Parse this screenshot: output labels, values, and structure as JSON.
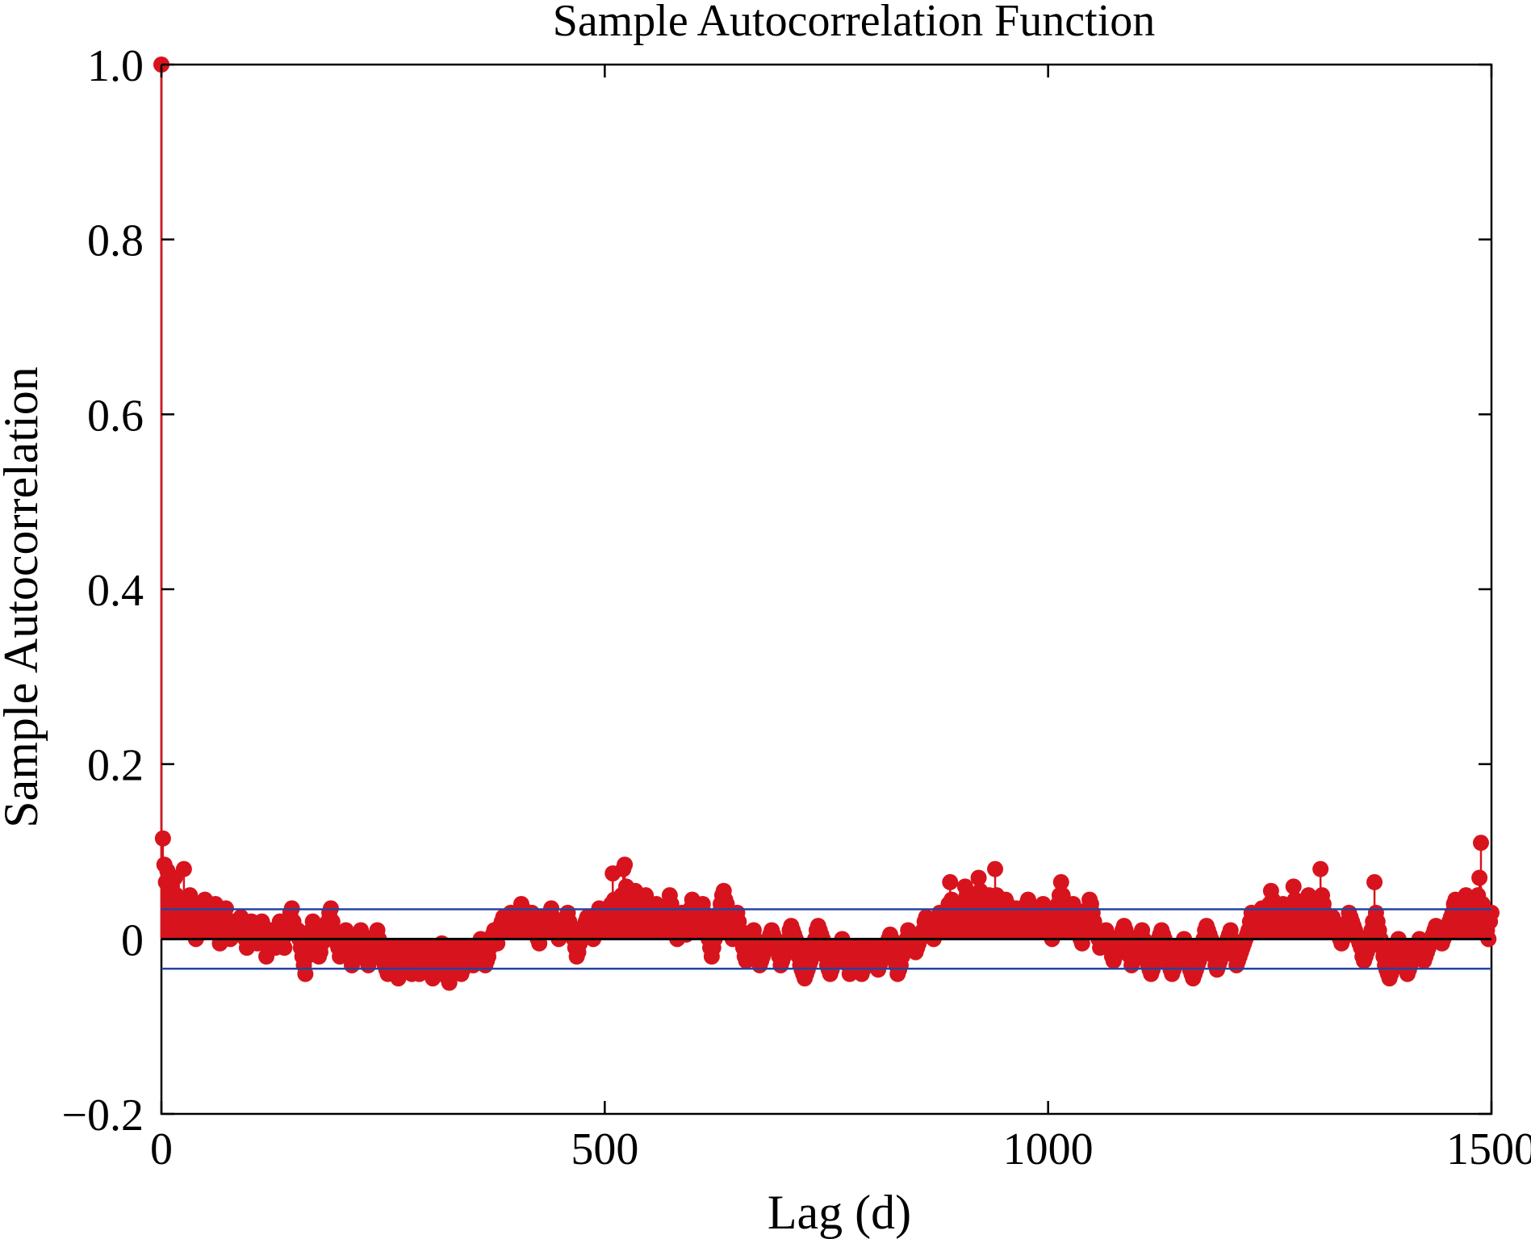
{
  "chart_data": {
    "type": "stem",
    "title": "Sample Autocorrelation Function",
    "xlabel": "Lag (d)",
    "ylabel": "Sample Autocorrelation",
    "xlim": [
      0,
      1500
    ],
    "ylim": [
      -0.2,
      1.0
    ],
    "xticks": [
      0,
      500,
      1000,
      1500
    ],
    "xtick_labels": [
      "0",
      "500",
      "1000",
      "1500"
    ],
    "yticks": [
      -0.2,
      0,
      0.2,
      0.4,
      0.6,
      0.8,
      1.0
    ],
    "ytick_labels": [
      "−0.2",
      "0",
      "0.2",
      "0.4",
      "0.6",
      "0.8",
      "1.0"
    ],
    "grid": false,
    "confidence_bounds": [
      0.034,
      -0.034
    ],
    "colors": {
      "stem": "#d7141e",
      "bounds": "#2244a0",
      "zero_line": "#000000",
      "axes": "#000000"
    },
    "series": [
      {
        "values": [
          1.0,
          0.115,
          0.085,
          0.065,
          0.078,
          0.055,
          0.045,
          0.06,
          0.04,
          0.07,
          0.05,
          0.03,
          0.02,
          0.045,
          0.035,
          0.08,
          0.04,
          0.02,
          0.01,
          0.05,
          0.03,
          0.025,
          0.015,
          0.0,
          0.02,
          0.03,
          0.04,
          0.025,
          0.035,
          0.045,
          0.02,
          0.01,
          0.03,
          0.035,
          0.02,
          0.025,
          0.04,
          0.015,
          0.005,
          -0.005,
          0.01,
          0.02,
          0.03,
          0.035,
          0.015,
          0.005,
          0.0,
          0.01,
          0.02,
          0.015,
          0.005,
          0.01,
          0.02,
          0.025,
          0.015,
          0.01,
          0.0,
          -0.01,
          0.005,
          0.015,
          0.02,
          0.01,
          0.0,
          0.005,
          -0.005,
          0.0,
          0.01,
          0.02,
          0.015,
          0.005,
          -0.02,
          -0.01,
          0.0,
          0.005,
          0.01,
          -0.005,
          -0.01,
          0.0,
          0.01,
          0.02,
          0.01,
          0.0,
          -0.01,
          0.005,
          0.015,
          0.02,
          0.03,
          0.035,
          0.02,
          0.01,
          0.005,
          0.01,
          0.0,
          -0.01,
          -0.02,
          -0.03,
          -0.04,
          -0.02,
          -0.01,
          0.0,
          0.01,
          0.02,
          0.01,
          0.0,
          -0.01,
          -0.02,
          -0.015,
          -0.005,
          0.0,
          0.005,
          0.01,
          0.02,
          0.03,
          0.035,
          0.02,
          0.01,
          0.0,
          -0.005,
          -0.01,
          -0.02,
          -0.01,
          0.0,
          0.005,
          0.01,
          0.0,
          -0.01,
          -0.02,
          -0.03,
          -0.02,
          -0.015,
          -0.01,
          0.0,
          0.005,
          0.01,
          -0.005,
          -0.01,
          -0.02,
          -0.025,
          -0.03,
          -0.025,
          -0.02,
          -0.01,
          0.0,
          0.005,
          0.01,
          0.0,
          -0.01,
          -0.015,
          -0.02,
          -0.03,
          -0.035,
          -0.04,
          -0.03,
          -0.02,
          -0.01,
          -0.02,
          -0.03,
          -0.04,
          -0.045,
          -0.035,
          -0.03,
          -0.02,
          -0.01,
          -0.015,
          -0.02,
          -0.025,
          -0.03,
          -0.04,
          -0.03,
          -0.02,
          -0.025,
          -0.035,
          -0.04,
          -0.03,
          -0.02,
          -0.015,
          -0.01,
          -0.02,
          -0.03,
          -0.035,
          -0.04,
          -0.045,
          -0.035,
          -0.03,
          -0.025,
          -0.02,
          -0.01,
          -0.005,
          -0.015,
          -0.025,
          -0.035,
          -0.045,
          -0.05,
          -0.04,
          -0.03,
          -0.02,
          -0.015,
          -0.01,
          -0.02,
          -0.03,
          -0.04,
          -0.035,
          -0.03,
          -0.025,
          -0.02,
          -0.015,
          -0.01,
          -0.02,
          -0.03,
          -0.025,
          -0.02,
          -0.01,
          -0.005,
          0.0,
          -0.01,
          -0.02,
          -0.03,
          -0.025,
          -0.02,
          -0.01,
          0.0,
          0.005,
          0.01,
          0.0,
          -0.005,
          0.005,
          0.015,
          0.02,
          0.025,
          0.02,
          0.01,
          0.015,
          0.02,
          0.03,
          0.025,
          0.02,
          0.015,
          0.01,
          0.02,
          0.03,
          0.04,
          0.035,
          0.025,
          0.02,
          0.015,
          0.01,
          0.02,
          0.03,
          0.025,
          0.015,
          0.005,
          0.0,
          -0.005,
          0.01,
          0.02,
          0.025,
          0.02,
          0.015,
          0.02,
          0.03,
          0.035,
          0.025,
          0.02,
          0.01,
          0.005,
          0.0,
          0.005,
          0.01,
          0.015,
          0.02,
          0.025,
          0.03,
          0.02,
          0.01,
          0.005,
          0.0,
          -0.01,
          -0.02,
          -0.015,
          -0.005,
          0.005,
          0.01,
          0.015,
          0.02,
          0.025,
          0.015,
          0.01,
          0.005,
          0.0,
          0.01,
          0.02,
          0.03,
          0.035,
          0.025,
          0.02,
          0.015,
          0.02,
          0.025,
          0.03,
          0.035,
          0.04,
          0.075,
          0.045,
          0.035,
          0.03,
          0.02,
          0.035,
          0.05,
          0.08,
          0.085,
          0.06,
          0.04,
          0.03,
          0.025,
          0.035,
          0.045,
          0.055,
          0.04,
          0.03,
          0.02,
          0.025,
          0.035,
          0.045,
          0.05,
          0.04,
          0.03,
          0.02,
          0.015,
          0.02,
          0.03,
          0.04,
          0.035,
          0.025,
          0.02,
          0.015,
          0.01,
          0.02,
          0.03,
          0.04,
          0.05,
          0.04,
          0.03,
          0.02,
          0.01,
          0.0,
          0.01,
          0.02,
          0.03,
          0.02,
          0.01,
          0.005,
          0.015,
          0.025,
          0.035,
          0.045,
          0.035,
          0.025,
          0.015,
          0.01,
          0.02,
          0.03,
          0.04,
          0.03,
          0.02,
          0.01,
          0.0,
          -0.01,
          -0.02,
          -0.01,
          0.0,
          0.01,
          0.02,
          0.03,
          0.04,
          0.05,
          0.055,
          0.045,
          0.04,
          0.03,
          0.02,
          0.01,
          0.0,
          0.01,
          0.02,
          0.03,
          0.02,
          0.01,
          0.0,
          -0.01,
          -0.02,
          -0.025,
          -0.015,
          -0.005,
          0.0,
          0.005,
          0.01,
          0.0,
          -0.01,
          -0.02,
          -0.03,
          -0.025,
          -0.02,
          -0.015,
          -0.01,
          -0.005,
          0.0,
          0.005,
          0.01,
          0.005,
          0.0,
          -0.005,
          -0.01,
          -0.02,
          -0.03,
          -0.025,
          -0.02,
          -0.01,
          -0.005,
          0.0,
          0.01,
          0.015,
          0.01,
          0.005,
          0.0,
          -0.01,
          -0.02,
          -0.03,
          -0.035,
          -0.04,
          -0.045,
          -0.04,
          -0.035,
          -0.03,
          -0.025,
          -0.02,
          -0.01,
          0.0,
          0.01,
          0.015,
          0.01,
          0.005,
          0.0,
          -0.01,
          -0.02,
          -0.03,
          -0.035,
          -0.04,
          -0.035,
          -0.03,
          -0.025,
          -0.02,
          -0.015,
          -0.01,
          -0.005,
          0.0,
          -0.005,
          -0.01,
          -0.02,
          -0.03,
          -0.04,
          -0.035,
          -0.03,
          -0.025,
          -0.02,
          -0.025,
          -0.03,
          -0.035,
          -0.04,
          -0.035,
          -0.03,
          -0.025,
          -0.02,
          -0.015,
          -0.01,
          -0.015,
          -0.02,
          -0.025,
          -0.03,
          -0.035,
          -0.03,
          -0.025,
          -0.02,
          -0.015,
          -0.01,
          -0.005,
          0.0,
          0.005,
          0.0,
          -0.01,
          -0.02,
          -0.03,
          -0.04,
          -0.035,
          -0.03,
          -0.02,
          -0.01,
          -0.005,
          0.0,
          0.01,
          0.005,
          0.0,
          -0.005,
          -0.01,
          -0.015,
          -0.01,
          -0.005,
          0.0,
          0.005,
          0.01,
          0.02,
          0.025,
          0.02,
          0.015,
          0.01,
          0.005,
          0.0,
          0.01,
          0.02,
          0.025,
          0.03,
          0.025,
          0.02,
          0.015,
          0.02,
          0.03,
          0.04,
          0.065,
          0.045,
          0.035,
          0.03,
          0.025,
          0.02,
          0.015,
          0.02,
          0.03,
          0.04,
          0.06,
          0.05,
          0.04,
          0.03,
          0.02,
          0.01,
          0.02,
          0.03,
          0.04,
          0.07,
          0.055,
          0.045,
          0.035,
          0.025,
          0.03,
          0.04,
          0.05,
          0.04,
          0.03,
          0.02,
          0.08,
          0.05,
          0.04,
          0.03,
          0.02,
          0.025,
          0.035,
          0.045,
          0.04,
          0.03,
          0.02,
          0.015,
          0.02,
          0.03,
          0.035,
          0.03,
          0.025,
          0.02,
          0.015,
          0.02,
          0.03,
          0.04,
          0.045,
          0.04,
          0.035,
          0.03,
          0.025,
          0.02,
          0.015,
          0.01,
          0.02,
          0.03,
          0.04,
          0.035,
          0.03,
          0.025,
          0.02,
          0.01,
          0.0,
          0.01,
          0.02,
          0.03,
          0.04,
          0.05,
          0.065,
          0.05,
          0.04,
          0.03,
          0.02,
          0.01,
          0.02,
          0.03,
          0.04,
          0.035,
          0.03,
          0.02,
          0.01,
          0.0,
          -0.005,
          0.005,
          0.015,
          0.025,
          0.035,
          0.045,
          0.04,
          0.03,
          0.02,
          0.01,
          0.005,
          0.0,
          -0.01,
          -0.005,
          0.0,
          0.005,
          0.01,
          0.005,
          0.0,
          -0.01,
          -0.02,
          -0.025,
          -0.02,
          -0.015,
          -0.01,
          -0.005,
          0.0,
          0.01,
          0.015,
          0.01,
          0.0,
          -0.01,
          -0.02,
          -0.03,
          -0.025,
          -0.02,
          -0.015,
          -0.01,
          0.0,
          0.005,
          0.01,
          0.0,
          -0.01,
          -0.02,
          -0.03,
          -0.035,
          -0.04,
          -0.035,
          -0.03,
          -0.02,
          -0.01,
          0.0,
          0.005,
          0.01,
          0.005,
          0.0,
          -0.01,
          -0.02,
          -0.03,
          -0.035,
          -0.04,
          -0.035,
          -0.03,
          -0.025,
          -0.02,
          -0.015,
          -0.01,
          -0.005,
          0.0,
          -0.01,
          -0.02,
          -0.03,
          -0.035,
          -0.04,
          -0.045,
          -0.04,
          -0.035,
          -0.03,
          -0.025,
          -0.02,
          -0.01,
          0.0,
          0.01,
          0.015,
          0.01,
          0.005,
          0.0,
          -0.01,
          -0.02,
          -0.03,
          -0.035,
          -0.03,
          -0.025,
          -0.02,
          -0.015,
          -0.01,
          -0.005,
          0.0,
          0.005,
          0.01,
          0.0,
          -0.01,
          -0.02,
          -0.03,
          -0.025,
          -0.02,
          -0.015,
          -0.01,
          -0.005,
          0.0,
          0.005,
          0.01,
          0.02,
          0.03,
          0.025,
          0.02,
          0.015,
          0.01,
          0.02,
          0.03,
          0.035,
          0.03,
          0.025,
          0.02,
          0.03,
          0.04,
          0.055,
          0.045,
          0.035,
          0.025,
          0.02,
          0.015,
          0.02,
          0.03,
          0.04,
          0.035,
          0.025,
          0.015,
          0.01,
          0.02,
          0.03,
          0.06,
          0.045,
          0.035,
          0.025,
          0.02,
          0.015,
          0.02,
          0.025,
          0.03,
          0.04,
          0.05,
          0.04,
          0.03,
          0.02,
          0.01,
          0.02,
          0.03,
          0.045,
          0.08,
          0.05,
          0.04,
          0.03,
          0.02,
          0.01,
          0.015,
          0.02,
          0.025,
          0.02,
          0.015,
          0.01,
          0.005,
          0.0,
          -0.005,
          0.0,
          0.005,
          0.01,
          0.02,
          0.03,
          0.025,
          0.02,
          0.015,
          0.01,
          0.005,
          0.0,
          -0.005,
          -0.01,
          -0.02,
          -0.025,
          -0.02,
          -0.015,
          -0.01,
          0.0,
          0.01,
          0.02,
          0.065,
          0.03,
          0.02,
          0.01,
          0.0,
          -0.01,
          -0.02,
          -0.03,
          -0.035,
          -0.04,
          -0.045,
          -0.04,
          -0.035,
          -0.03,
          -0.02,
          -0.01,
          0.0,
          -0.005,
          -0.01,
          -0.02,
          -0.03,
          -0.035,
          -0.04,
          -0.035,
          -0.03,
          -0.025,
          -0.02,
          -0.015,
          -0.01,
          -0.005,
          0.0,
          -0.01,
          -0.02,
          -0.025,
          -0.02,
          -0.015,
          -0.01,
          -0.005,
          0.0,
          0.005,
          0.01,
          0.015,
          0.01,
          0.005,
          0.0,
          -0.005,
          0.0,
          0.005,
          0.01,
          0.015,
          0.02,
          0.025,
          0.03,
          0.04,
          0.045,
          0.04,
          0.035,
          0.03,
          0.025,
          0.03,
          0.04,
          0.05,
          0.045,
          0.04,
          0.035,
          0.03,
          0.035,
          0.04,
          0.045,
          0.05,
          0.07,
          0.11,
          0.04,
          0.03,
          0.02,
          0.01,
          0.0,
          0.02,
          0.03
        ]
      }
    ]
  }
}
